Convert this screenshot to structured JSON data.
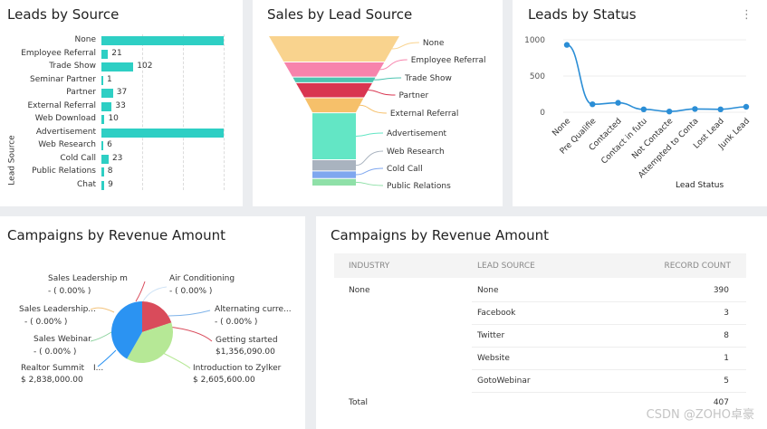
{
  "leads_by_source": {
    "title": "Leads by Source",
    "ylabel": "Lead Source",
    "rows": [
      {
        "label": "None",
        "value": 390,
        "value_label": ""
      },
      {
        "label": "Employee Referral",
        "value": 21,
        "value_label": "21"
      },
      {
        "label": "Trade Show",
        "value": 102,
        "value_label": "102"
      },
      {
        "label": "Seminar Partner",
        "value": 1,
        "value_label": "1"
      },
      {
        "label": "Partner",
        "value": 37,
        "value_label": "37"
      },
      {
        "label": "External Referral",
        "value": 33,
        "value_label": "33"
      },
      {
        "label": "Web Download",
        "value": 10,
        "value_label": "10"
      },
      {
        "label": "Advertisement",
        "value": 390,
        "value_label": ""
      },
      {
        "label": "Web Research",
        "value": 6,
        "value_label": "6"
      },
      {
        "label": "Cold Call",
        "value": 23,
        "value_label": "23"
      },
      {
        "label": "Public Relations",
        "value": 8,
        "value_label": "8"
      },
      {
        "label": "Chat",
        "value": 9,
        "value_label": "9"
      }
    ]
  },
  "sales_by_lead_source": {
    "title": "Sales by Lead Source",
    "stages": [
      {
        "label": "None",
        "color": "#f9d38e",
        "share": 0.14
      },
      {
        "label": "Employee Referral",
        "color": "#f783ac",
        "share": 0.08
      },
      {
        "label": "Trade Show",
        "color": "#4dc4b0",
        "share": 0.03
      },
      {
        "label": "Partner",
        "color": "#d93550",
        "share": 0.08
      },
      {
        "label": "External Referral",
        "color": "#f6c06a",
        "share": 0.08
      },
      {
        "label": "Advertisement",
        "color": "#63e6c5",
        "share": 0.25
      },
      {
        "label": "Web Research",
        "color": "#a9b3bf",
        "share": 0.06
      },
      {
        "label": "Cold Call",
        "color": "#7fa7ef",
        "share": 0.04
      },
      {
        "label": "Public Relations",
        "color": "#8fe0a8",
        "share": 0.04
      }
    ]
  },
  "leads_by_status": {
    "title": "Leads by Status",
    "xlabel": "Lead Status",
    "yticks": [
      "1000",
      "500",
      "0"
    ],
    "points": [
      {
        "label": "None",
        "value": 930
      },
      {
        "label": "Pre Qualifie",
        "value": 110
      },
      {
        "label": "Contacted",
        "value": 130
      },
      {
        "label": "Contact in futu",
        "value": 40
      },
      {
        "label": "Not Contacte",
        "value": 10
      },
      {
        "label": "Attempted to Conta",
        "value": 45
      },
      {
        "label": "Lost Lead",
        "value": 40
      },
      {
        "label": "Junk Lead",
        "value": 75
      }
    ]
  },
  "campaigns_pie": {
    "title": "Campaigns by Revenue Amount",
    "slices": [
      {
        "label": "Getting started",
        "value_label": "$1,356,090.00",
        "value": 1356090,
        "color": "#d94b5b"
      },
      {
        "label": "Introduction to Zylker",
        "value_label": "$ 2,605,600.00",
        "value": 2605600,
        "color": "#b6e896"
      },
      {
        "label": "Realtor Summit",
        "value_label": "$ 2,838,000.00",
        "value": 2838000,
        "color": "#2b93f2"
      }
    ],
    "zero_labels": [
      {
        "label": "Sales Leadership m",
        "value_label": "- ( 0.00% )"
      },
      {
        "label": "Air Conditioning",
        "value_label": "- ( 0.00% )"
      },
      {
        "label": "Sales Leadership...",
        "value_label": "- ( 0.00% )"
      },
      {
        "label": "Alternating curre...",
        "value_label": "- ( 0.00% )"
      },
      {
        "label": "Sales Webinar",
        "value_label": "- ( 0.00% )"
      }
    ],
    "realtor_suffix": "I..."
  },
  "campaigns_table": {
    "title": "Campaigns by Revenue Amount",
    "headers": {
      "industry": "INDUSTRY",
      "lead_source": "LEAD SOURCE",
      "record_count": "RECORD COUNT"
    },
    "industry": "None",
    "rows": [
      {
        "source": "None",
        "count": "390"
      },
      {
        "source": "Facebook",
        "count": "3"
      },
      {
        "source": "Twitter",
        "count": "8"
      },
      {
        "source": "Website",
        "count": "1"
      },
      {
        "source": "GotoWebinar",
        "count": "5"
      }
    ],
    "total_label": "Total",
    "total_value": "407"
  },
  "watermark": "CSDN @ZOHO卓豪"
}
